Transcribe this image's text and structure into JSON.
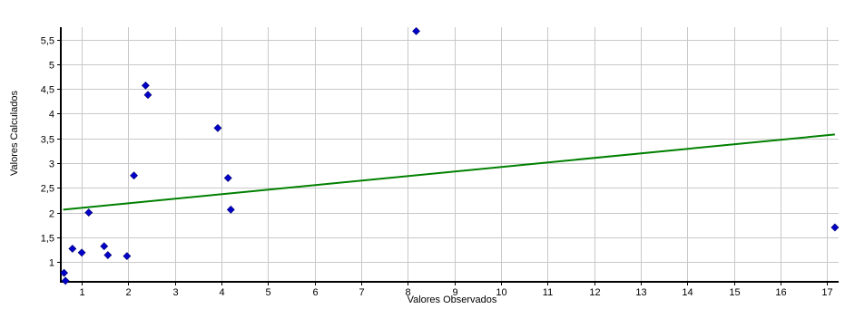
{
  "chart_data": {
    "type": "scatter",
    "title": "",
    "xlabel": "Valores Observados",
    "ylabel": "Valores Calculados",
    "xlim": [
      0.55,
      17.25
    ],
    "ylim": [
      0.6,
      5.75
    ],
    "x_ticks": [
      "1",
      "2",
      "3",
      "4",
      "5",
      "6",
      "7",
      "8",
      "9",
      "10",
      "11",
      "12",
      "13",
      "14",
      "15",
      "16",
      "17"
    ],
    "y_ticks": [
      "1",
      "1,5",
      "2",
      "2,5",
      "3",
      "3,5",
      "4",
      "4,5",
      "5",
      "5,5"
    ],
    "grid": true,
    "legend": "none",
    "series": [
      {
        "color": "#0000cc",
        "marker": "diamond",
        "points": [
          {
            "x": 0.62,
            "y": 0.78
          },
          {
            "x": 0.65,
            "y": 0.62
          },
          {
            "x": 0.8,
            "y": 1.27
          },
          {
            "x": 1.0,
            "y": 1.19
          },
          {
            "x": 1.15,
            "y": 2.0
          },
          {
            "x": 1.48,
            "y": 1.32
          },
          {
            "x": 1.56,
            "y": 1.14
          },
          {
            "x": 1.97,
            "y": 1.12
          },
          {
            "x": 2.12,
            "y": 2.75
          },
          {
            "x": 2.37,
            "y": 4.57
          },
          {
            "x": 2.42,
            "y": 4.38
          },
          {
            "x": 3.92,
            "y": 3.71
          },
          {
            "x": 4.14,
            "y": 2.7
          },
          {
            "x": 4.2,
            "y": 2.06
          },
          {
            "x": 8.18,
            "y": 5.67
          },
          {
            "x": 17.17,
            "y": 1.7
          }
        ]
      }
    ],
    "trendline": {
      "color": "#008000",
      "points": [
        {
          "x": 0.6,
          "y": 2.06
        },
        {
          "x": 17.17,
          "y": 3.58
        }
      ]
    }
  }
}
